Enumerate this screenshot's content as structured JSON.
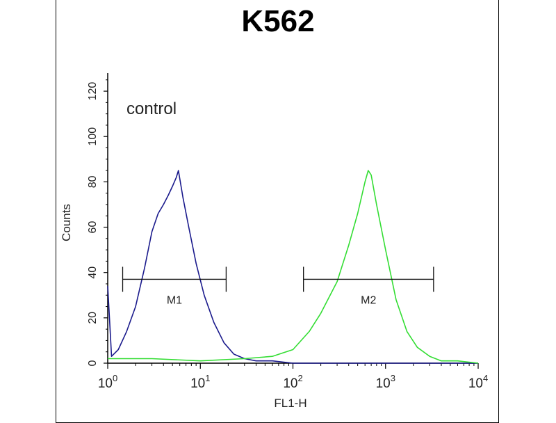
{
  "chart_data": {
    "type": "line",
    "title": "K562",
    "xlabel": "FL1-H",
    "ylabel": "Counts",
    "x_scale": "log",
    "xlim": [
      1,
      10000
    ],
    "ylim": [
      0,
      128
    ],
    "x_ticks": [
      {
        "base": "10",
        "exp": "0",
        "value": 1
      },
      {
        "base": "10",
        "exp": "1",
        "value": 10
      },
      {
        "base": "10",
        "exp": "2",
        "value": 100
      },
      {
        "base": "10",
        "exp": "3",
        "value": 1000
      },
      {
        "base": "10",
        "exp": "4",
        "value": 10000
      }
    ],
    "y_ticks": [
      "0",
      "20",
      "40",
      "60",
      "80",
      "100",
      "120"
    ],
    "annotation": "control",
    "series": [
      {
        "color": "#1a1a8c",
        "x": [
          1.0,
          1.1,
          1.3,
          1.6,
          2.0,
          2.5,
          3.0,
          3.5,
          4.0,
          4.5,
          5.0,
          5.5,
          5.8,
          6.5,
          7.5,
          9.0,
          11,
          14,
          18,
          23,
          30,
          40,
          60,
          100,
          300,
          1000,
          3000,
          10000
        ],
        "y": [
          34,
          3,
          6,
          14,
          25,
          42,
          58,
          66,
          70,
          74,
          78,
          82,
          85,
          73,
          60,
          44,
          30,
          18,
          9,
          4,
          2,
          1,
          1,
          0,
          0,
          0,
          0,
          0
        ]
      },
      {
        "color": "#33dd33",
        "x": [
          1.0,
          3,
          10,
          30,
          60,
          100,
          150,
          200,
          300,
          400,
          500,
          600,
          650,
          700,
          800,
          1000,
          1300,
          1700,
          2200,
          3000,
          4000,
          6000,
          10000
        ],
        "y": [
          2,
          2,
          1,
          2,
          3,
          6,
          14,
          22,
          36,
          52,
          66,
          80,
          85,
          83,
          70,
          50,
          28,
          14,
          7,
          3,
          1,
          1,
          0
        ]
      }
    ],
    "gates": [
      {
        "label": "M1",
        "x_start": 1.45,
        "x_end": 19,
        "y": 37
      },
      {
        "label": "M2",
        "x_start": 130,
        "x_end": 3300,
        "y": 37
      }
    ]
  }
}
